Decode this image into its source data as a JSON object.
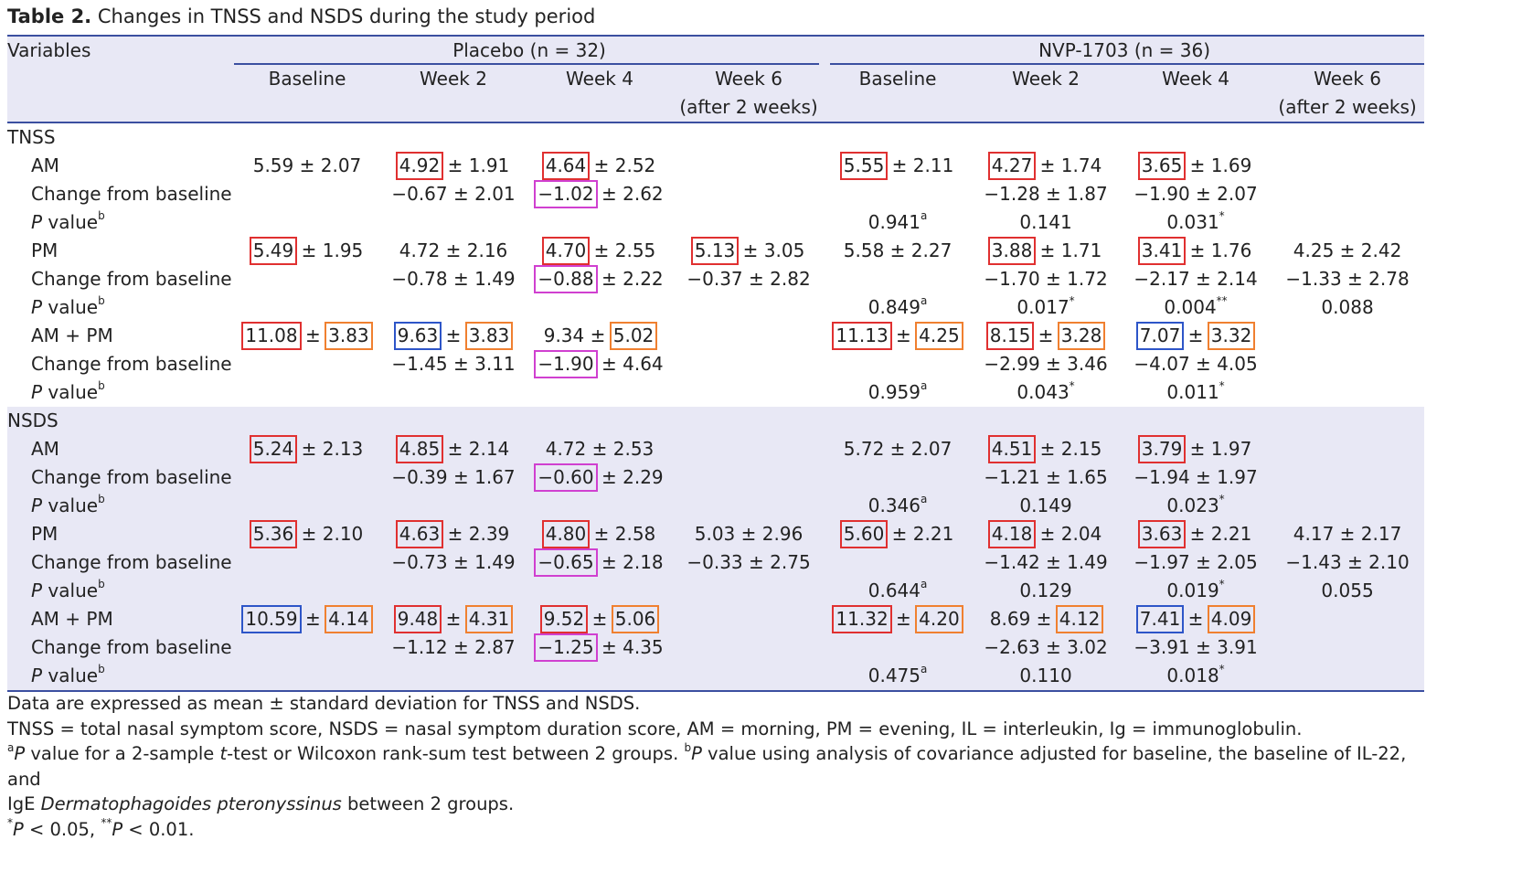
{
  "title": {
    "bold": "Table 2.",
    "text": " Changes in TNSS and NSDS during the study period"
  },
  "header": {
    "variables": "Variables",
    "group1": "Placebo (n = 32)",
    "group2": "NVP-1703 (n = 36)",
    "cols": [
      "Baseline",
      "Week 2",
      "Week 4",
      "Week 6",
      "Baseline",
      "Week 2",
      "Week 4",
      "Week 6"
    ],
    "col_sub": "(after 2 weeks)"
  },
  "sections": {
    "tnss": "TNSS",
    "nsds": "NSDS"
  },
  "row_labels": {
    "am": "AM",
    "pm": "PM",
    "ampm": "AM + PM",
    "change": "Change from baseline",
    "p_italic": "P",
    "p_rest": " value",
    "p_sup": "b"
  },
  "plusminus": " ± ",
  "cells": {
    "t_am": [
      "5.59",
      "2.07",
      "4.92",
      "1.91",
      "4.64",
      "2.52",
      "",
      "",
      "5.55",
      "2.11",
      "4.27",
      "1.74",
      "3.65",
      "1.69",
      "",
      ""
    ],
    "t_amc": [
      "",
      "",
      "−0.67",
      "2.01",
      "−1.02",
      "2.62",
      "",
      "",
      "",
      "",
      "−1.28",
      "1.87",
      "−1.90",
      "2.07",
      "",
      ""
    ],
    "t_amp": [
      "",
      "",
      "",
      "",
      "0.941",
      "0.141",
      "0.031",
      ""
    ],
    "t_amp_sup": [
      "",
      "",
      "",
      "",
      "a",
      "",
      "*",
      ""
    ],
    "t_pm": [
      "5.49",
      "1.95",
      "4.72",
      "2.16",
      "4.70",
      "2.55",
      "5.13",
      "3.05",
      "5.58",
      "2.27",
      "3.88",
      "1.71",
      "3.41",
      "1.76",
      "4.25",
      "2.42"
    ],
    "t_pmc": [
      "",
      "",
      "−0.78",
      "1.49",
      "−0.88",
      "2.22",
      "−0.37",
      "2.82",
      "",
      "",
      "−1.70",
      "1.72",
      "−2.17",
      "2.14",
      "−1.33",
      "2.78"
    ],
    "t_pmp": [
      "",
      "",
      "",
      "",
      "0.849",
      "0.017",
      "0.004",
      "0.088"
    ],
    "t_pmp_sup": [
      "",
      "",
      "",
      "",
      "a",
      "*",
      "**",
      ""
    ],
    "t_ap": [
      "11.08",
      "3.83",
      "9.63",
      "3.83",
      "9.34",
      "5.02",
      "",
      "",
      "11.13",
      "4.25",
      "8.15",
      "3.28",
      "7.07",
      "3.32",
      "",
      ""
    ],
    "t_apc": [
      "",
      "",
      "−1.45",
      "3.11",
      "−1.90",
      "4.64",
      "",
      "",
      "",
      "",
      "−2.99",
      "3.46",
      "−4.07",
      "4.05",
      "",
      ""
    ],
    "t_app": [
      "",
      "",
      "",
      "",
      "0.959",
      "0.043",
      "0.011",
      ""
    ],
    "t_app_sup": [
      "",
      "",
      "",
      "",
      "a",
      "*",
      "*",
      ""
    ],
    "n_am": [
      "5.24",
      "2.13",
      "4.85",
      "2.14",
      "4.72",
      "2.53",
      "",
      "",
      "5.72",
      "2.07",
      "4.51",
      "2.15",
      "3.79",
      "1.97",
      "",
      ""
    ],
    "n_amc": [
      "",
      "",
      "−0.39",
      "1.67",
      "−0.60",
      "2.29",
      "",
      "",
      "",
      "",
      "−1.21",
      "1.65",
      "−1.94",
      "1.97",
      "",
      ""
    ],
    "n_amp": [
      "",
      "",
      "",
      "",
      "0.346",
      "0.149",
      "0.023",
      ""
    ],
    "n_amp_sup": [
      "",
      "",
      "",
      "",
      "a",
      "",
      "*",
      ""
    ],
    "n_pm": [
      "5.36",
      "2.10",
      "4.63",
      "2.39",
      "4.80",
      "2.58",
      "5.03",
      "2.96",
      "5.60",
      "2.21",
      "4.18",
      "2.04",
      "3.63",
      "2.21",
      "4.17",
      "2.17"
    ],
    "n_pmc": [
      "",
      "",
      "−0.73",
      "1.49",
      "−0.65",
      "2.18",
      "−0.33",
      "2.75",
      "",
      "",
      "−1.42",
      "1.49",
      "−1.97",
      "2.05",
      "−1.43",
      "2.10"
    ],
    "n_pmp": [
      "",
      "",
      "",
      "",
      "0.644",
      "0.129",
      "0.019",
      "0.055"
    ],
    "n_pmp_sup": [
      "",
      "",
      "",
      "",
      "a",
      "",
      "*",
      ""
    ],
    "n_ap": [
      "10.59",
      "4.14",
      "9.48",
      "4.31",
      "9.52",
      "5.06",
      "",
      "",
      "11.32",
      "4.20",
      "8.69",
      "4.12",
      "7.41",
      "4.09",
      "",
      ""
    ],
    "n_apc": [
      "",
      "",
      "−1.12",
      "2.87",
      "−1.25",
      "4.35",
      "",
      "",
      "",
      "",
      "−2.63",
      "3.02",
      "−3.91",
      "3.91",
      "",
      ""
    ],
    "n_app": [
      "",
      "",
      "",
      "",
      "0.475",
      "0.110",
      "0.018",
      ""
    ],
    "n_app_sup": [
      "",
      "",
      "",
      "",
      "a",
      "",
      "*",
      ""
    ]
  },
  "highlights": {
    "red": "#e03030",
    "orange": "#f08030",
    "blue": "#2d55c8",
    "magenta": "#d040d0"
  },
  "notes": {
    "n1": "Data are expressed as mean ± standard deviation for TNSS and NSDS.",
    "n2": "TNSS = total nasal symptom score, NSDS = nasal symptom duration score, AM = morning, PM = evening, IL = interleukin, Ig = immunoglobulin.",
    "n3_a": "a",
    "n3_p1": "P",
    "n3_t1": " value for a 2-sample ",
    "n3_t": "t",
    "n3_t2": "-test or Wilcoxon rank-sum test between 2 groups. ",
    "n3_b": "b",
    "n3_p2": "P",
    "n3_t3": " value using analysis of covariance adjusted for baseline, the baseline of IL-22, and",
    "n4_a": "IgE ",
    "n4_i": "Dermatophagoides pteronyssinus",
    "n4_b": " between 2 groups.",
    "n5_s1": "*",
    "n5_p1": "P",
    "n5_t1": " < 0.05, ",
    "n5_s2": "**",
    "n5_p2": "P",
    "n5_t2": " < 0.01."
  }
}
